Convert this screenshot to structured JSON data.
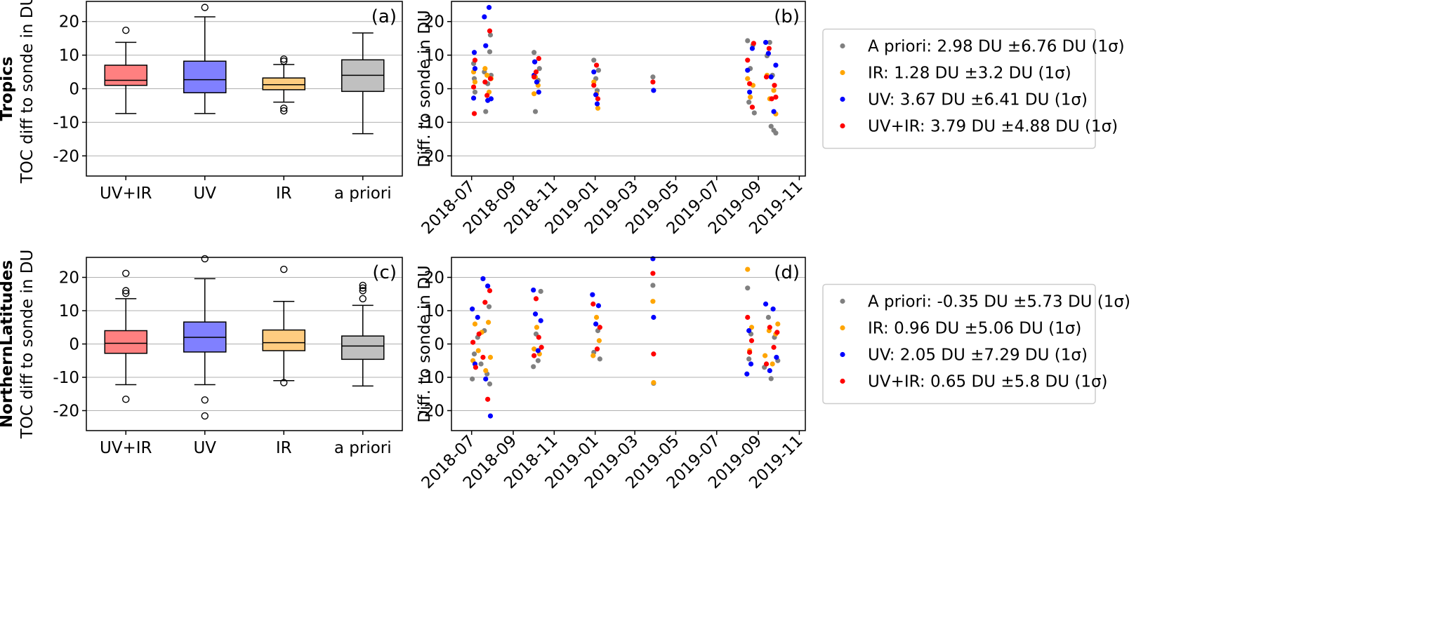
{
  "row_labels": [
    "Tropics",
    "NorthernLatitudes"
  ],
  "colors": {
    "apriori": "#808080",
    "ir": "#ffa500",
    "uv": "#0000ff",
    "uvir": "#ff0000",
    "box_uvir": "#ff8080",
    "box_uv": "#8080ff",
    "box_ir": "#ffcc80",
    "box_apriori": "#c0c0c0"
  },
  "chart_data": [
    {
      "id": "a",
      "type": "box",
      "panel_label": "(a)",
      "ylabel": "TOC diff to sonde in DU",
      "ylim": [
        -26,
        26
      ],
      "yticks": [
        -20,
        -10,
        0,
        10,
        20
      ],
      "grid": "horizontal",
      "categories": [
        "UV+IR",
        "UV",
        "IR",
        "a priori"
      ],
      "boxes": [
        {
          "q1": 1.0,
          "median": 2.5,
          "q3": 7.0,
          "whisker_low": -7.4,
          "whisker_high": 13.8,
          "outliers": [
            17.4
          ]
        },
        {
          "q1": -1.2,
          "median": 2.7,
          "q3": 8.2,
          "whisker_low": -7.4,
          "whisker_high": 21.4,
          "outliers": [
            24.2
          ]
        },
        {
          "q1": -0.3,
          "median": 1.2,
          "q3": 3.2,
          "whisker_low": -4.0,
          "whisker_high": 7.2,
          "outliers": [
            8.2,
            8.8,
            -5.8,
            -6.6
          ]
        },
        {
          "q1": -0.8,
          "median": 4.0,
          "q3": 8.6,
          "whisker_low": -13.4,
          "whisker_high": 16.6,
          "outliers": []
        }
      ]
    },
    {
      "id": "b",
      "type": "scatter",
      "panel_label": "(b)",
      "ylabel": "Diff. to sonde in DU",
      "ylim": [
        -26,
        26
      ],
      "yticks": [
        -20,
        -10,
        0,
        10,
        20
      ],
      "xlim": [
        "2018-06-01",
        "2019-11-10"
      ],
      "xticks": [
        "2018-07",
        "2018-09",
        "2018-11",
        "2019-01",
        "2019-03",
        "2019-05",
        "2019-07",
        "2019-09",
        "2019-11"
      ],
      "grid": "horizontal",
      "legend_position": "outside-right",
      "series": [
        {
          "name": "A priori: 2.98 DU ±6.76 DU (1σ)",
          "key": "apriori",
          "points": [
            [
              "2018-07-04",
              7.5
            ],
            [
              "2018-07-05",
              3.0
            ],
            [
              "2018-07-06",
              -1.0
            ],
            [
              "2018-07-20",
              5.0
            ],
            [
              "2018-07-22",
              -6.8
            ],
            [
              "2018-07-25",
              1.5
            ],
            [
              "2018-07-28",
              11.0
            ],
            [
              "2018-07-29",
              16.0
            ],
            [
              "2018-07-30",
              4.0
            ],
            [
              "2018-10-02",
              10.8
            ],
            [
              "2018-10-03",
              8.0
            ],
            [
              "2018-10-04",
              -6.8
            ],
            [
              "2018-10-08",
              2.5
            ],
            [
              "2018-10-10",
              6.0
            ],
            [
              "2018-12-30",
              8.5
            ],
            [
              "2019-01-02",
              3.0
            ],
            [
              "2019-01-04",
              -0.5
            ],
            [
              "2019-01-06",
              5.5
            ],
            [
              "2019-03-28",
              3.5
            ],
            [
              "2019-08-16",
              14.3
            ],
            [
              "2019-08-18",
              -4.0
            ],
            [
              "2019-08-20",
              6.0
            ],
            [
              "2019-08-24",
              13.0
            ],
            [
              "2019-08-26",
              -7.2
            ],
            [
              "2019-09-14",
              9.8
            ],
            [
              "2019-09-18",
              13.8
            ],
            [
              "2019-09-20",
              -11.2
            ],
            [
              "2019-09-24",
              -12.4
            ],
            [
              "2019-09-27",
              -13.2
            ],
            [
              "2019-09-22",
              4.0
            ]
          ]
        },
        {
          "name": "IR: 1.28 DU ±3.2 DU (1σ)",
          "key": "ir",
          "points": [
            [
              "2018-07-04",
              5.0
            ],
            [
              "2018-07-06",
              2.0
            ],
            [
              "2018-07-21",
              6.0
            ],
            [
              "2018-07-24",
              4.0
            ],
            [
              "2018-07-27",
              -1.0
            ],
            [
              "2018-07-30",
              3.0
            ],
            [
              "2018-10-02",
              -1.5
            ],
            [
              "2018-10-04",
              3.5
            ],
            [
              "2018-10-08",
              1.0
            ],
            [
              "2018-12-30",
              2.0
            ],
            [
              "2019-01-03",
              -1.5
            ],
            [
              "2019-01-05",
              -5.8
            ],
            [
              "2019-08-16",
              3.0
            ],
            [
              "2019-08-20",
              -2.5
            ],
            [
              "2019-08-24",
              1.0
            ],
            [
              "2019-09-14",
              4.0
            ],
            [
              "2019-09-18",
              -3.0
            ],
            [
              "2019-09-24",
              -0.5
            ],
            [
              "2019-09-27",
              -7.5
            ]
          ]
        },
        {
          "name": "UV: 3.67 DU ±6.41 DU (1σ)",
          "key": "uv",
          "points": [
            [
              "2018-07-04",
              -2.8
            ],
            [
              "2018-07-05",
              10.8
            ],
            [
              "2018-07-06",
              6.0
            ],
            [
              "2018-07-20",
              21.4
            ],
            [
              "2018-07-22",
              12.8
            ],
            [
              "2018-07-25",
              -3.5
            ],
            [
              "2018-07-27",
              24.2
            ],
            [
              "2018-07-30",
              -3.0
            ],
            [
              "2018-10-02",
              4.0
            ],
            [
              "2018-10-03",
              8.0
            ],
            [
              "2018-10-06",
              2.0
            ],
            [
              "2018-10-09",
              -1.0
            ],
            [
              "2018-12-30",
              5.0
            ],
            [
              "2019-01-02",
              -1.8
            ],
            [
              "2019-01-04",
              -4.5
            ],
            [
              "2019-03-29",
              -0.5
            ],
            [
              "2019-08-16",
              5.5
            ],
            [
              "2019-08-19",
              -1.0
            ],
            [
              "2019-08-23",
              12.0
            ],
            [
              "2019-09-12",
              13.8
            ],
            [
              "2019-09-16",
              10.5
            ],
            [
              "2019-09-20",
              3.5
            ],
            [
              "2019-09-24",
              -6.8
            ],
            [
              "2019-09-27",
              7.0
            ]
          ]
        },
        {
          "name": "UV+IR: 3.79 DU ±4.88 DU (1σ)",
          "key": "uvir",
          "points": [
            [
              "2018-07-04",
              0.5
            ],
            [
              "2018-07-05",
              -7.4
            ],
            [
              "2018-07-06",
              8.5
            ],
            [
              "2018-07-21",
              2.0
            ],
            [
              "2018-07-24",
              -2.0
            ],
            [
              "2018-07-28",
              17.2
            ],
            [
              "2018-07-29",
              3.0
            ],
            [
              "2018-10-02",
              3.5
            ],
            [
              "2018-10-05",
              5.0
            ],
            [
              "2018-10-09",
              9.0
            ],
            [
              "2018-12-30",
              1.0
            ],
            [
              "2019-01-03",
              7.0
            ],
            [
              "2019-01-05",
              -3.0
            ],
            [
              "2019-03-28",
              2.0
            ],
            [
              "2019-08-16",
              8.5
            ],
            [
              "2019-08-19",
              1.5
            ],
            [
              "2019-08-23",
              -5.5
            ],
            [
              "2019-08-25",
              13.5
            ],
            [
              "2019-09-13",
              3.5
            ],
            [
              "2019-09-17",
              12.0
            ],
            [
              "2019-09-21",
              -3.0
            ],
            [
              "2019-09-25",
              1.0
            ],
            [
              "2019-09-27",
              -2.5
            ]
          ]
        }
      ]
    },
    {
      "id": "c",
      "type": "box",
      "panel_label": "(c)",
      "ylabel": "TOC diff to sonde in DU",
      "ylim": [
        -26,
        26
      ],
      "yticks": [
        -20,
        -10,
        0,
        10,
        20
      ],
      "grid": "horizontal",
      "categories": [
        "UV+IR",
        "UV",
        "IR",
        "a priori"
      ],
      "boxes": [
        {
          "q1": -2.8,
          "median": 0.2,
          "q3": 4.0,
          "whisker_low": -12.2,
          "whisker_high": 13.6,
          "outliers": [
            21.2,
            16.0,
            15.2,
            -16.6
          ]
        },
        {
          "q1": -2.4,
          "median": 2.0,
          "q3": 6.6,
          "whisker_low": -12.2,
          "whisker_high": 19.6,
          "outliers": [
            25.6,
            -16.8,
            -21.6
          ]
        },
        {
          "q1": -2.0,
          "median": 0.4,
          "q3": 4.2,
          "whisker_low": -11.0,
          "whisker_high": 12.8,
          "outliers": [
            22.4,
            -11.6
          ]
        },
        {
          "q1": -4.6,
          "median": -0.6,
          "q3": 2.4,
          "whisker_low": -12.6,
          "whisker_high": 11.6,
          "outliers": [
            17.6,
            16.8,
            16.0,
            13.6
          ]
        }
      ]
    },
    {
      "id": "d",
      "type": "scatter",
      "panel_label": "(d)",
      "ylabel": "Diff. to sonde in DU",
      "ylim": [
        -26,
        26
      ],
      "yticks": [
        -20,
        -10,
        0,
        10,
        20
      ],
      "xlim": [
        "2018-06-01",
        "2019-11-10"
      ],
      "xticks": [
        "2018-07",
        "2018-09",
        "2018-11",
        "2019-01",
        "2019-03",
        "2019-05",
        "2019-07",
        "2019-09",
        "2019-11"
      ],
      "grid": "horizontal",
      "legend_position": "outside-right",
      "series": [
        {
          "name": "A priori: -0.35 DU ±5.73 DU (1σ)",
          "key": "apriori",
          "points": [
            [
              "2018-07-02",
              -10.5
            ],
            [
              "2018-07-05",
              -3.0
            ],
            [
              "2018-07-10",
              2.0
            ],
            [
              "2018-07-15",
              -6.0
            ],
            [
              "2018-07-20",
              4.0
            ],
            [
              "2018-07-24",
              -9.0
            ],
            [
              "2018-07-27",
              11.2
            ],
            [
              "2018-07-28",
              -12.0
            ],
            [
              "2018-10-01",
              -6.8
            ],
            [
              "2018-10-05",
              3.0
            ],
            [
              "2018-10-08",
              -5.0
            ],
            [
              "2018-10-12",
              15.8
            ],
            [
              "2018-12-30",
              -2.5
            ],
            [
              "2019-01-05",
              4.0
            ],
            [
              "2019-01-08",
              -4.5
            ],
            [
              "2019-03-28",
              17.6
            ],
            [
              "2019-03-29",
              -11.8
            ],
            [
              "2019-08-16",
              16.8
            ],
            [
              "2019-08-18",
              -4.5
            ],
            [
              "2019-08-21",
              3.0
            ],
            [
              "2019-09-10",
              -7.0
            ],
            [
              "2019-09-16",
              8.0
            ],
            [
              "2019-09-20",
              -10.4
            ],
            [
              "2019-09-25",
              2.0
            ],
            [
              "2019-09-30",
              -5.0
            ]
          ]
        },
        {
          "name": "IR: 0.96 DU ±5.06 DU (1σ)",
          "key": "ir",
          "points": [
            [
              "2018-07-03",
              -5.0
            ],
            [
              "2018-07-06",
              6.0
            ],
            [
              "2018-07-11",
              -2.0
            ],
            [
              "2018-07-16",
              3.5
            ],
            [
              "2018-07-22",
              -8.0
            ],
            [
              "2018-07-26",
              6.5
            ],
            [
              "2018-07-29",
              -4.0
            ],
            [
              "2018-10-02",
              -1.5
            ],
            [
              "2018-10-06",
              5.0
            ],
            [
              "2018-10-10",
              -3.0
            ],
            [
              "2018-12-29",
              -3.5
            ],
            [
              "2019-01-03",
              8.0
            ],
            [
              "2019-01-07",
              1.0
            ],
            [
              "2019-03-28",
              12.8
            ],
            [
              "2019-03-29",
              -11.6
            ],
            [
              "2019-08-16",
              22.4
            ],
            [
              "2019-08-19",
              -2.0
            ],
            [
              "2019-08-22",
              5.0
            ],
            [
              "2019-09-11",
              -3.5
            ],
            [
              "2019-09-17",
              4.0
            ],
            [
              "2019-09-22",
              -6.0
            ],
            [
              "2019-09-27",
              3.0
            ],
            [
              "2019-09-30",
              6.0
            ]
          ]
        },
        {
          "name": "UV: 2.05 DU ±7.29 DU (1σ)",
          "key": "uv",
          "points": [
            [
              "2018-07-02",
              10.5
            ],
            [
              "2018-07-06",
              -6.0
            ],
            [
              "2018-07-10",
              8.0
            ],
            [
              "2018-07-18",
              19.6
            ],
            [
              "2018-07-22",
              -10.5
            ],
            [
              "2018-07-25",
              17.4
            ],
            [
              "2018-07-29",
              -21.6
            ],
            [
              "2018-10-01",
              16.2
            ],
            [
              "2018-10-04",
              9.0
            ],
            [
              "2018-10-08",
              -2.0
            ],
            [
              "2018-10-12",
              7.0
            ],
            [
              "2018-12-28",
              14.8
            ],
            [
              "2019-01-02",
              6.0
            ],
            [
              "2019-01-06",
              11.5
            ],
            [
              "2019-03-28",
              25.6
            ],
            [
              "2019-03-29",
              8.0
            ],
            [
              "2019-08-15",
              -9.0
            ],
            [
              "2019-08-18",
              4.0
            ],
            [
              "2019-08-21",
              -6.0
            ],
            [
              "2019-09-12",
              12.0
            ],
            [
              "2019-09-18",
              -8.0
            ],
            [
              "2019-09-23",
              10.5
            ],
            [
              "2019-09-28",
              -4.0
            ]
          ]
        },
        {
          "name": "UV+IR: 0.65 DU ±5.8 DU (1σ)",
          "key": "uvir",
          "points": [
            [
              "2018-07-03",
              0.5
            ],
            [
              "2018-07-07",
              -7.0
            ],
            [
              "2018-07-12",
              3.0
            ],
            [
              "2018-07-18",
              -4.0
            ],
            [
              "2018-07-21",
              12.5
            ],
            [
              "2018-07-25",
              -16.6
            ],
            [
              "2018-07-28",
              16.0
            ],
            [
              "2018-10-02",
              -3.5
            ],
            [
              "2018-10-05",
              13.6
            ],
            [
              "2018-10-09",
              2.0
            ],
            [
              "2018-10-13",
              -1.0
            ],
            [
              "2018-12-29",
              12.0
            ],
            [
              "2019-01-04",
              -1.5
            ],
            [
              "2019-01-08",
              5.0
            ],
            [
              "2019-03-28",
              21.2
            ],
            [
              "2019-03-29",
              -3.0
            ],
            [
              "2019-08-16",
              8.0
            ],
            [
              "2019-08-19",
              -2.5
            ],
            [
              "2019-08-22",
              1.0
            ],
            [
              "2019-09-13",
              -6.0
            ],
            [
              "2019-09-18",
              5.0
            ],
            [
              "2019-09-24",
              -1.0
            ],
            [
              "2019-09-29",
              3.5
            ]
          ]
        }
      ]
    }
  ]
}
